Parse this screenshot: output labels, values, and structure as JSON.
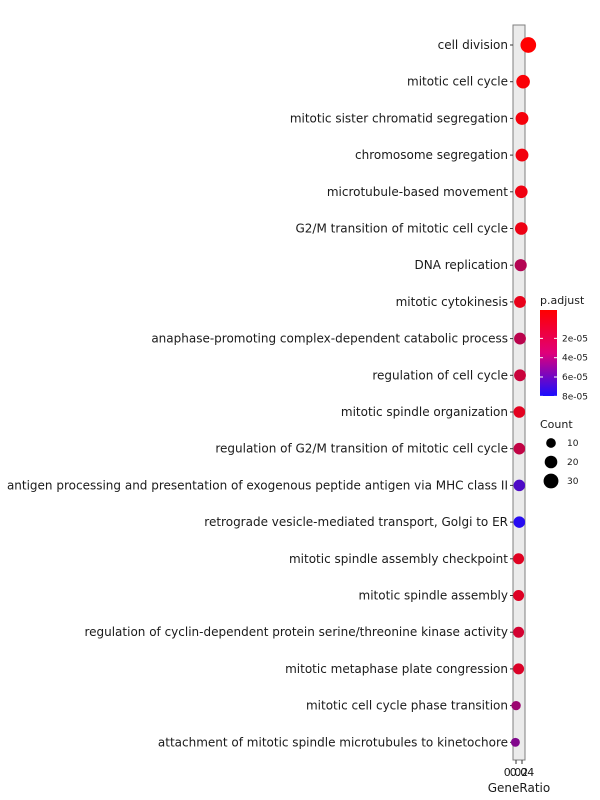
{
  "chart_data": {
    "type": "scatter",
    "xlabel": "GeneRatio",
    "ylabel": "",
    "x_tick_labels": [
      "0.02",
      "0.04"
    ],
    "grid": false,
    "legend_position": "right",
    "color_legend": {
      "title": "p.adjust",
      "labels": [
        "2e-05",
        "4e-05",
        "6e-05",
        "8e-05"
      ],
      "low_color": "#ff0000",
      "high_color": "#1a0dff"
    },
    "size_legend": {
      "title": "Count",
      "labels": [
        "10",
        "20",
        "30"
      ]
    },
    "terms": [
      {
        "label": "cell division",
        "gene_ratio": 0.048,
        "count": 34,
        "p_adjust": 1e-06
      },
      {
        "label": "mitotic cell cycle",
        "gene_ratio": 0.033,
        "count": 24,
        "p_adjust": 3e-06
      },
      {
        "label": "mitotic sister chromatid segregation",
        "gene_ratio": 0.03,
        "count": 21,
        "p_adjust": 5e-06
      },
      {
        "label": "chromosome segregation",
        "gene_ratio": 0.03,
        "count": 21,
        "p_adjust": 6e-06
      },
      {
        "label": "microtubule-based movement",
        "gene_ratio": 0.028,
        "count": 20,
        "p_adjust": 7e-06
      },
      {
        "label": "G2/M transition of mitotic cell cycle",
        "gene_ratio": 0.028,
        "count": 20,
        "p_adjust": 8e-06
      },
      {
        "label": "DNA replication",
        "gene_ratio": 0.026,
        "count": 18,
        "p_adjust": 3e-05
      },
      {
        "label": "mitotic cytokinesis",
        "gene_ratio": 0.024,
        "count": 17,
        "p_adjust": 1e-05
      },
      {
        "label": "anaphase-promoting complex-dependent catabolic process",
        "gene_ratio": 0.024,
        "count": 17,
        "p_adjust": 2.8e-05
      },
      {
        "label": "regulation of cell cycle",
        "gene_ratio": 0.024,
        "count": 17,
        "p_adjust": 2.2e-05
      },
      {
        "label": "mitotic spindle organization",
        "gene_ratio": 0.022,
        "count": 16,
        "p_adjust": 1.2e-05
      },
      {
        "label": "regulation of G2/M transition of mitotic cell cycle",
        "gene_ratio": 0.022,
        "count": 16,
        "p_adjust": 2.5e-05
      },
      {
        "label": "antigen processing and presentation of exogenous peptide antigen via MHC class II",
        "gene_ratio": 0.022,
        "count": 16,
        "p_adjust": 7e-05
      },
      {
        "label": "retrograde vesicle-mediated transport, Golgi to ER",
        "gene_ratio": 0.022,
        "count": 16,
        "p_adjust": 8.5e-05
      },
      {
        "label": "mitotic spindle assembly checkpoint",
        "gene_ratio": 0.02,
        "count": 14,
        "p_adjust": 1.3e-05
      },
      {
        "label": "mitotic spindle assembly",
        "gene_ratio": 0.02,
        "count": 14,
        "p_adjust": 1.4e-05
      },
      {
        "label": "regulation of cyclin-dependent protein serine/threonine kinase activity",
        "gene_ratio": 0.02,
        "count": 14,
        "p_adjust": 1.8e-05
      },
      {
        "label": "mitotic metaphase plate congression",
        "gene_ratio": 0.02,
        "count": 14,
        "p_adjust": 1.5e-05
      },
      {
        "label": "mitotic cell cycle phase transition",
        "gene_ratio": 0.013,
        "count": 9,
        "p_adjust": 4e-05
      },
      {
        "label": "attachment of mitotic spindle microtubules to kinetochore",
        "gene_ratio": 0.011,
        "count": 8,
        "p_adjust": 5e-05
      }
    ]
  }
}
